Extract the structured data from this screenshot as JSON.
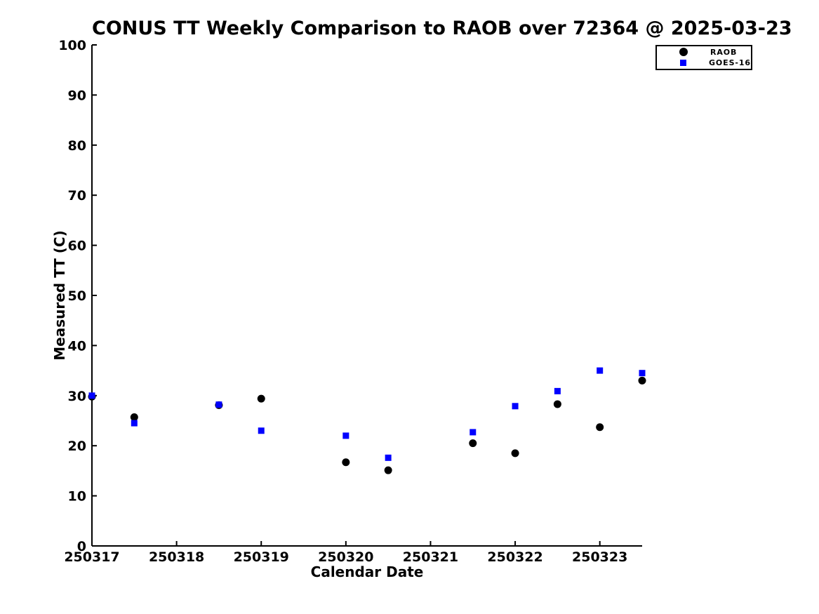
{
  "chart_data": {
    "type": "scatter",
    "title": "CONUS TT Weekly Comparison to RAOB over 72364 @ 2025-03-23",
    "xlabel": "Calendar Date",
    "ylabel": "Measured TT (C)",
    "x_range": [
      250317,
      250323.5
    ],
    "y_range": [
      0,
      100
    ],
    "x_ticks": [
      250317,
      250318,
      250319,
      250320,
      250321,
      250322,
      250323
    ],
    "y_ticks": [
      0,
      10,
      20,
      30,
      40,
      50,
      60,
      70,
      80,
      90,
      100
    ],
    "grid": false,
    "legend_position": "top-right",
    "background_color": "#ffffff",
    "axis_color": "#000000",
    "series": [
      {
        "name": "RAOB",
        "marker": "circle",
        "color": "#000000",
        "marker_size": 11,
        "x": [
          250317,
          250317.5,
          250318.5,
          250319,
          250320,
          250320.5,
          250321.5,
          250322,
          250322.5,
          250323,
          250323.5
        ],
        "y": [
          29.8,
          25.7,
          28.1,
          29.4,
          16.7,
          15.1,
          20.5,
          18.5,
          28.3,
          23.7,
          33.0
        ]
      },
      {
        "name": "GOES-16",
        "marker": "square",
        "color": "#0000ff",
        "marker_size": 9,
        "x": [
          250317,
          250317.5,
          250318.5,
          250319,
          250320,
          250320.5,
          250321.5,
          250322,
          250322.5,
          250323,
          250323.5
        ],
        "y": [
          30.0,
          24.5,
          28.2,
          23.0,
          22.0,
          17.6,
          22.7,
          27.9,
          30.9,
          35.0,
          34.5
        ]
      }
    ]
  }
}
